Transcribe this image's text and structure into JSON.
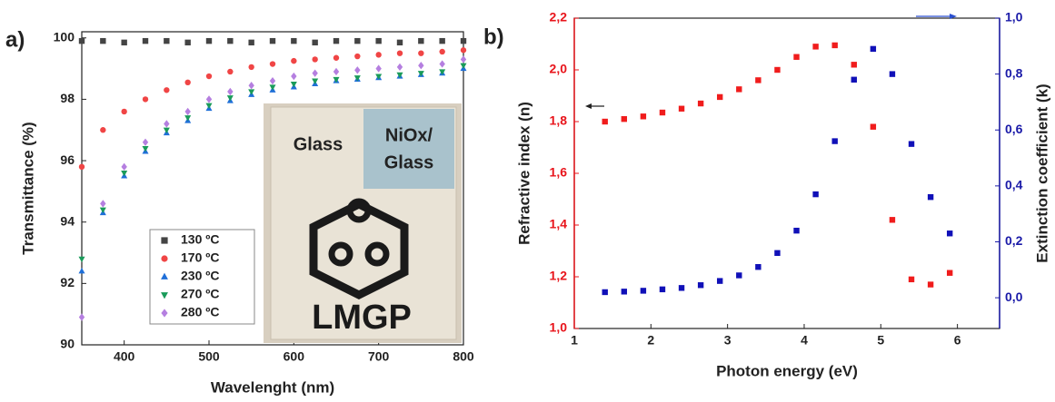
{
  "chart_data": [
    {
      "type": "scatter",
      "panel_label": "a)",
      "xlabel": "Wavelenght (nm)",
      "ylabel": "Transmittance (%)",
      "xlim": [
        350,
        800
      ],
      "xticks": [
        400,
        500,
        600,
        700,
        800
      ],
      "ylim": [
        90,
        100.2
      ],
      "yticks": [
        90,
        92,
        94,
        96,
        98,
        100
      ],
      "x": [
        350,
        375,
        400,
        425,
        450,
        475,
        500,
        525,
        550,
        575,
        600,
        625,
        650,
        675,
        700,
        725,
        750,
        775,
        800
      ],
      "series": [
        {
          "name": "130 ºC",
          "color": "#444444",
          "marker": "square",
          "values": [
            99.9,
            99.9,
            99.85,
            99.9,
            99.9,
            99.85,
            99.9,
            99.9,
            99.85,
            99.9,
            99.9,
            99.85,
            99.9,
            99.9,
            99.9,
            99.85,
            99.9,
            99.9,
            99.9
          ]
        },
        {
          "name": "170 ºC",
          "color": "#f04545",
          "marker": "circle",
          "values": [
            95.8,
            97.0,
            97.6,
            98.0,
            98.3,
            98.55,
            98.75,
            98.9,
            99.05,
            99.15,
            99.25,
            99.3,
            99.35,
            99.4,
            99.45,
            99.5,
            99.5,
            99.55,
            99.6
          ]
        },
        {
          "name": "230 ºC",
          "color": "#1f6fd8",
          "marker": "triangle",
          "values": [
            92.4,
            94.3,
            95.5,
            96.3,
            96.9,
            97.3,
            97.7,
            97.95,
            98.15,
            98.3,
            98.4,
            98.5,
            98.6,
            98.65,
            98.7,
            98.75,
            98.8,
            98.85,
            99.0
          ]
        },
        {
          "name": "270 ºC",
          "color": "#1a9b5a",
          "marker": "triangle-down",
          "values": [
            92.8,
            94.4,
            95.6,
            96.4,
            97.0,
            97.4,
            97.8,
            98.05,
            98.25,
            98.4,
            98.5,
            98.6,
            98.65,
            98.7,
            98.75,
            98.8,
            98.85,
            98.9,
            99.1
          ]
        },
        {
          "name": "280 ºC",
          "color": "#b57fe0",
          "marker": "diamond",
          "values": [
            90.9,
            94.6,
            95.8,
            96.6,
            97.2,
            97.6,
            98.0,
            98.25,
            98.45,
            98.6,
            98.75,
            98.85,
            98.9,
            98.95,
            99.0,
            99.05,
            99.1,
            99.15,
            99.3
          ]
        }
      ],
      "inset_labels": [
        "Glass",
        "NiOx/",
        "Glass",
        "LMGP"
      ]
    },
    {
      "type": "scatter",
      "panel_label": "b)",
      "xlabel": "Photon energy (eV)",
      "ylabel": "Refractive index (n)",
      "y2label": "Extinction coefficient (k)",
      "y_color": "#e8141b",
      "y2_color": "#1a1aa8",
      "xlim": [
        1,
        6.55
      ],
      "xticks": [
        1,
        2,
        3,
        4,
        5,
        6
      ],
      "ylim": [
        1.0,
        2.2
      ],
      "yticks": [
        {
          "value": 1.0,
          "label": "1,0"
        },
        {
          "value": 1.2,
          "label": "1,2"
        },
        {
          "value": 1.4,
          "label": "1,4"
        },
        {
          "value": 1.6,
          "label": "1,6"
        },
        {
          "value": 1.8,
          "label": "1,8"
        },
        {
          "value": 2.0,
          "label": "2,0"
        },
        {
          "value": 2.2,
          "label": "2,2"
        }
      ],
      "y2lim": [
        -0.11,
        1.0
      ],
      "y2ticks": [
        {
          "value": 0.0,
          "label": "0,0"
        },
        {
          "value": 0.2,
          "label": "0,2"
        },
        {
          "value": 0.4,
          "label": "0,4"
        },
        {
          "value": 0.6,
          "label": "0,6"
        },
        {
          "value": 0.8,
          "label": "0,8"
        },
        {
          "value": 1.0,
          "label": "1,0"
        }
      ],
      "x": [
        1.4,
        1.65,
        1.9,
        2.15,
        2.4,
        2.65,
        2.9,
        3.15,
        3.4,
        3.65,
        3.9,
        4.15,
        4.4,
        4.65,
        4.9,
        5.15,
        5.4,
        5.65,
        5.9
      ],
      "series": [
        {
          "color": "#f01c1c",
          "marker": "square",
          "values": [
            1.8,
            1.81,
            1.82,
            1.835,
            1.85,
            1.87,
            1.895,
            1.925,
            1.96,
            2.0,
            2.05,
            2.09,
            2.095,
            2.02,
            1.78,
            1.42,
            1.19,
            1.17,
            1.215
          ]
        },
        {
          "color": "#1010b8",
          "marker": "square",
          "axis": "y2",
          "values": [
            0.02,
            0.022,
            0.025,
            0.03,
            0.035,
            0.045,
            0.06,
            0.08,
            0.11,
            0.16,
            0.24,
            0.37,
            0.56,
            0.78,
            0.89,
            0.8,
            0.55,
            0.36,
            0.23
          ]
        }
      ]
    }
  ]
}
